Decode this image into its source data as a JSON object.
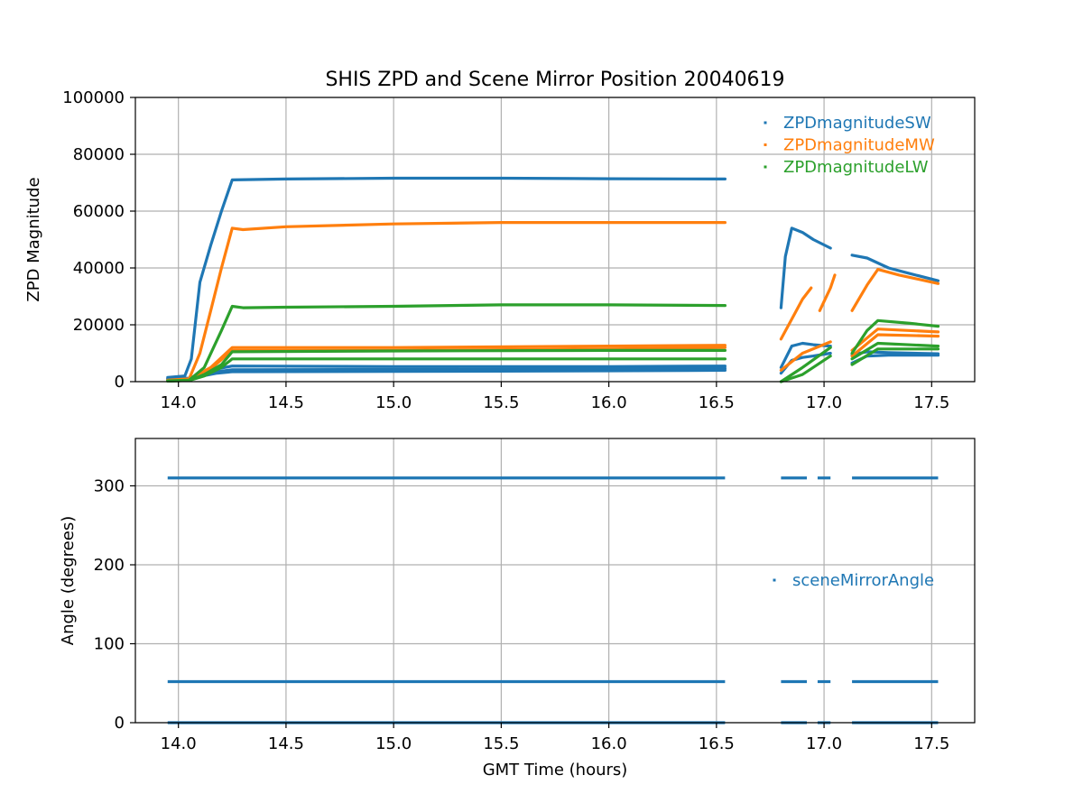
{
  "figure": {
    "title": "SHIS ZPD and Scene Mirror Position 20040619",
    "xlabel": "GMT Time (hours)"
  },
  "colors": {
    "sw": "#1f77b4",
    "mw": "#ff7f0e",
    "lw": "#2ca02c",
    "grid": "#b0b0b0"
  },
  "chart_data": [
    {
      "type": "scatter",
      "title": "SHIS ZPD and Scene Mirror Position 20040619",
      "xlabel": "",
      "ylabel": "ZPD Magnitude",
      "xlim": [
        13.8,
        17.7
      ],
      "ylim": [
        0,
        100000
      ],
      "xticks": [
        14.0,
        14.5,
        15.0,
        15.5,
        16.0,
        16.5,
        17.0,
        17.5
      ],
      "xtick_labels": [
        "14.0",
        "14.5",
        "15.0",
        "15.5",
        "16.0",
        "16.5",
        "17.0",
        "17.5"
      ],
      "yticks": [
        0,
        20000,
        40000,
        60000,
        80000,
        100000
      ],
      "ytick_labels": [
        "0",
        "20000",
        "40000",
        "60000",
        "80000",
        "100000"
      ],
      "grid": true,
      "legend_position": "top-right",
      "series": [
        {
          "name": "ZPDmagnitudeSW",
          "color": "#1f77b4",
          "traces": [
            {
              "x": [
                13.95,
                14.03,
                14.06,
                14.1,
                14.15,
                14.2,
                14.25,
                14.5,
                15.0,
                15.5,
                16.0,
                16.54
              ],
              "y": [
                1500,
                2000,
                8000,
                35000,
                48000,
                60000,
                71000,
                71300,
                71600,
                71600,
                71400,
                71300
              ]
            },
            {
              "x": [
                16.8,
                16.82,
                16.85,
                16.9,
                16.95,
                17.03
              ],
              "y": [
                26000,
                44000,
                54000,
                52500,
                50000,
                47000
              ]
            },
            {
              "x": [
                17.13,
                17.2,
                17.3,
                17.4,
                17.53
              ],
              "y": [
                44500,
                43500,
                40000,
                38000,
                35500
              ]
            },
            {
              "x": [
                13.95,
                14.05,
                14.1,
                14.18,
                14.25,
                15.0,
                16.0,
                16.54
              ],
              "y": [
                1000,
                1200,
                2500,
                4500,
                5500,
                5300,
                5300,
                5500
              ]
            },
            {
              "x": [
                13.95,
                14.05,
                14.1,
                14.18,
                14.25,
                15.0,
                16.0,
                16.54
              ],
              "y": [
                1000,
                1200,
                2200,
                3500,
                4200,
                4300,
                4500,
                4700
              ]
            },
            {
              "x": [
                13.95,
                14.05,
                14.1,
                14.18,
                14.25,
                15.0,
                16.0,
                16.54
              ],
              "y": [
                800,
                1000,
                1800,
                3000,
                3500,
                3600,
                3800,
                4000
              ]
            },
            {
              "x": [
                16.8,
                16.85,
                16.9,
                16.95,
                17.03
              ],
              "y": [
                5000,
                12500,
                13500,
                13000,
                12500
              ]
            },
            {
              "x": [
                16.8,
                16.85,
                16.9,
                16.95,
                17.03
              ],
              "y": [
                3000,
                7500,
                8500,
                9000,
                10000
              ]
            },
            {
              "x": [
                17.13,
                17.2,
                17.3,
                17.53
              ],
              "y": [
                9500,
                10500,
                10200,
                9800
              ]
            },
            {
              "x": [
                17.13,
                17.2,
                17.3,
                17.53
              ],
              "y": [
                6500,
                9000,
                9300,
                9300
              ]
            }
          ]
        },
        {
          "name": "ZPDmagnitudeMW",
          "color": "#ff7f0e",
          "traces": [
            {
              "x": [
                13.95,
                14.05,
                14.1,
                14.15,
                14.2,
                14.25,
                14.3,
                14.5,
                15.0,
                15.5,
                16.0,
                16.54
              ],
              "y": [
                500,
                1000,
                10000,
                25000,
                40000,
                54000,
                53500,
                54500,
                55500,
                56000,
                56000,
                56000
              ]
            },
            {
              "x": [
                16.8,
                16.85,
                16.9,
                16.94
              ],
              "y": [
                15000,
                22000,
                29000,
                33000
              ]
            },
            {
              "x": [
                16.98,
                17.03,
                17.05
              ],
              "y": [
                25000,
                33000,
                37500
              ]
            },
            {
              "x": [
                17.13,
                17.2,
                17.25,
                17.35,
                17.53
              ],
              "y": [
                25000,
                34000,
                39500,
                37500,
                34500
              ]
            },
            {
              "x": [
                13.95,
                14.05,
                14.15,
                14.25,
                15.0,
                16.0,
                16.54
              ],
              "y": [
                300,
                800,
                5000,
                12000,
                12000,
                12500,
                12800
              ]
            },
            {
              "x": [
                13.95,
                14.05,
                14.15,
                14.25,
                15.0,
                16.0,
                16.54
              ],
              "y": [
                300,
                700,
                4500,
                11000,
                11000,
                11500,
                12000
              ]
            },
            {
              "x": [
                16.8,
                16.9,
                17.03
              ],
              "y": [
                4000,
                10000,
                14000
              ]
            },
            {
              "x": [
                17.13,
                17.25,
                17.53
              ],
              "y": [
                11000,
                18500,
                17500
              ]
            },
            {
              "x": [
                17.13,
                17.25,
                17.53
              ],
              "y": [
                9000,
                16500,
                16000
              ]
            }
          ]
        },
        {
          "name": "ZPDmagnitudeLW",
          "color": "#2ca02c",
          "traces": [
            {
              "x": [
                13.95,
                14.05,
                14.12,
                14.2,
                14.25,
                14.3,
                14.5,
                15.0,
                15.5,
                16.0,
                16.54
              ],
              "y": [
                300,
                500,
                5000,
                18000,
                26500,
                26000,
                26200,
                26500,
                27000,
                27000,
                26800
              ]
            },
            {
              "x": [
                17.13,
                17.2,
                17.25,
                17.4,
                17.53
              ],
              "y": [
                10000,
                18000,
                21500,
                20500,
                19500
              ]
            },
            {
              "x": [
                13.95,
                14.05,
                14.12,
                14.2,
                14.25,
                15.0,
                16.0,
                16.54
              ],
              "y": [
                200,
                400,
                2500,
                6000,
                10500,
                10800,
                11000,
                11000
              ]
            },
            {
              "x": [
                13.95,
                14.05,
                14.12,
                14.2,
                14.25,
                15.0,
                16.0,
                16.54
              ],
              "y": [
                200,
                400,
                2000,
                5000,
                8000,
                8000,
                8000,
                8000
              ]
            },
            {
              "x": [
                16.8,
                16.9,
                17.03
              ],
              "y": [
                0,
                5000,
                12000
              ]
            },
            {
              "x": [
                16.8,
                16.9,
                17.03
              ],
              "y": [
                0,
                2500,
                9000
              ]
            },
            {
              "x": [
                17.13,
                17.25,
                17.53
              ],
              "y": [
                8000,
                13500,
                12500
              ]
            },
            {
              "x": [
                17.13,
                17.25,
                17.53
              ],
              "y": [
                6000,
                11500,
                11500
              ]
            }
          ]
        }
      ]
    },
    {
      "type": "scatter",
      "title": "",
      "xlabel": "GMT Time (hours)",
      "ylabel": "Angle (degrees)",
      "xlim": [
        13.8,
        17.7
      ],
      "ylim": [
        0,
        360
      ],
      "xticks": [
        14.0,
        14.5,
        15.0,
        15.5,
        16.0,
        16.5,
        17.0,
        17.5
      ],
      "xtick_labels": [
        "14.0",
        "14.5",
        "15.0",
        "15.5",
        "16.0",
        "16.5",
        "17.0",
        "17.5"
      ],
      "yticks": [
        0,
        100,
        200,
        300
      ],
      "ytick_labels": [
        "0",
        "100",
        "200",
        "300"
      ],
      "grid": true,
      "legend_position": "center-right",
      "series": [
        {
          "name": "sceneMirrorAngle",
          "color": "#1f77b4",
          "levels": [
            310,
            52,
            0
          ],
          "segments": [
            [
              13.95,
              16.54
            ],
            [
              16.8,
              16.92
            ],
            [
              16.97,
              17.03
            ],
            [
              17.13,
              17.53
            ]
          ]
        }
      ]
    }
  ]
}
